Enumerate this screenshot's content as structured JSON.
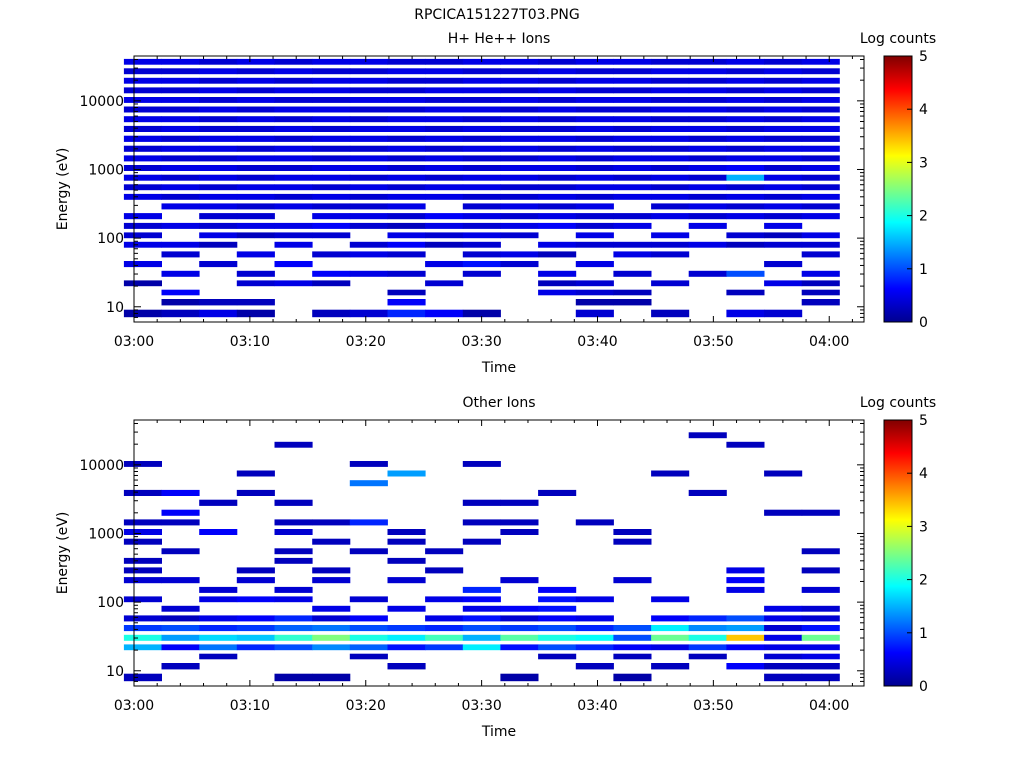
{
  "figure_title": "RPCICA151227T03.PNG",
  "chart_data": [
    {
      "type": "heatmap",
      "title": "H+ He++ Ions",
      "xlabel": "Time",
      "ylabel": "Energy (eV)",
      "y_scale": "log",
      "ylim": [
        6,
        45000
      ],
      "x_range": [
        "03:00",
        "04:03"
      ],
      "x_ticks": [
        "03:00",
        "03:10",
        "03:20",
        "03:30",
        "03:40",
        "03:50",
        "04:00"
      ],
      "y_ticks": [
        "10",
        "100",
        "1000",
        "10000"
      ],
      "colorbar": {
        "label": "Log counts",
        "range": [
          0,
          5
        ],
        "ticks": [
          "0",
          "1",
          "2",
          "3",
          "4",
          "5"
        ]
      },
      "time_bins": [
        "03:00:45",
        "03:04:00",
        "03:07:15",
        "03:10:30",
        "03:13:45",
        "03:17:00",
        "03:20:15",
        "03:23:30",
        "03:26:45",
        "03:30:00",
        "03:33:15",
        "03:36:30",
        "03:39:45",
        "03:43:00",
        "03:46:15",
        "03:49:30",
        "03:52:45",
        "03:56:00",
        "03:59:15"
      ],
      "energy_bins": [
        8,
        12,
        16,
        22,
        30,
        42,
        58,
        80,
        110,
        150,
        210,
        290,
        400,
        550,
        760,
        1050,
        1450,
        2000,
        2800,
        3900,
        5400,
        7500,
        10300,
        14200,
        19600,
        27000,
        37000
      ],
      "values": [
        [
          0.2,
          0.3,
          0.5,
          0.2,
          0.0,
          0.3,
          0.4,
          0.8,
          0.6,
          0.2,
          0.0,
          0.0,
          0.4,
          0.0,
          0.3,
          0.0,
          0.5,
          0.4,
          0.0
        ],
        [
          0.0,
          0.2,
          0.3,
          0.3,
          0.0,
          0.0,
          0.0,
          0.6,
          0.0,
          0.0,
          0.0,
          0.0,
          0.2,
          0.2,
          0.0,
          0.0,
          0.0,
          0.0,
          0.3
        ],
        [
          0.0,
          0.6,
          0.0,
          0.0,
          0.0,
          0.0,
          0.0,
          0.3,
          0.0,
          0.0,
          0.0,
          0.5,
          0.4,
          0.3,
          0.0,
          0.0,
          0.3,
          0.0,
          0.3
        ],
        [
          0.2,
          0.0,
          0.0,
          0.4,
          0.5,
          0.3,
          0.0,
          0.0,
          0.4,
          0.0,
          0.0,
          0.3,
          0.4,
          0.0,
          0.4,
          0.0,
          0.0,
          0.5,
          0.3
        ],
        [
          0.0,
          0.5,
          0.0,
          0.4,
          0.0,
          0.6,
          0.5,
          0.4,
          0.0,
          0.4,
          0.0,
          0.5,
          0.0,
          0.4,
          0.0,
          0.4,
          1.0,
          0.0,
          0.5
        ],
        [
          0.5,
          0.0,
          0.4,
          0.0,
          0.6,
          0.0,
          0.0,
          0.0,
          0.5,
          0.7,
          0.4,
          0.0,
          0.5,
          0.0,
          0.0,
          0.0,
          0.0,
          0.4,
          0.0
        ],
        [
          0.0,
          0.4,
          0.0,
          0.5,
          0.0,
          0.4,
          0.5,
          0.4,
          0.0,
          0.4,
          0.5,
          0.3,
          0.0,
          0.5,
          0.4,
          0.0,
          0.0,
          0.0,
          0.4
        ],
        [
          0.5,
          0.5,
          0.3,
          0.0,
          0.5,
          0.0,
          0.4,
          0.6,
          0.3,
          0.4,
          0.0,
          0.5,
          0.4,
          0.4,
          0.4,
          0.5,
          0.3,
          0.4,
          0.4
        ],
        [
          0.4,
          0.0,
          0.5,
          0.3,
          0.4,
          0.4,
          0.0,
          0.5,
          0.4,
          0.5,
          0.4,
          0.0,
          0.5,
          0.0,
          0.5,
          0.0,
          0.4,
          0.3,
          0.5
        ],
        [
          0.4,
          0.5,
          0.4,
          0.5,
          0.5,
          0.6,
          0.4,
          0.3,
          0.5,
          0.4,
          0.5,
          0.6,
          0.4,
          0.5,
          0.0,
          0.5,
          0.0,
          0.5,
          0.0
        ],
        [
          0.5,
          0.0,
          0.4,
          0.4,
          0.0,
          0.5,
          0.5,
          0.4,
          0.6,
          0.5,
          0.4,
          0.5,
          0.4,
          0.4,
          0.5,
          0.4,
          0.5,
          0.4,
          0.5
        ],
        [
          0.0,
          0.5,
          0.5,
          0.4,
          0.5,
          0.4,
          0.4,
          0.5,
          0.0,
          0.4,
          0.5,
          0.4,
          0.5,
          0.0,
          0.4,
          0.5,
          0.4,
          0.5,
          0.4
        ],
        [
          0.5,
          0.4,
          0.5,
          0.5,
          0.4,
          0.5,
          0.4,
          0.5,
          0.5,
          0.4,
          0.4,
          0.5,
          0.4,
          0.5,
          0.5,
          0.4,
          0.5,
          0.4,
          0.5
        ],
        [
          0.4,
          0.5,
          0.4,
          0.5,
          0.5,
          0.4,
          0.5,
          0.4,
          0.5,
          0.5,
          0.4,
          0.4,
          0.5,
          0.5,
          0.4,
          0.5,
          0.4,
          0.5,
          0.4
        ],
        [
          0.5,
          0.4,
          0.5,
          0.4,
          0.5,
          0.5,
          0.4,
          0.5,
          0.4,
          0.5,
          0.5,
          0.4,
          0.5,
          0.4,
          0.5,
          0.4,
          1.5,
          0.5,
          0.4
        ],
        [
          0.4,
          0.5,
          0.5,
          0.4,
          0.4,
          0.5,
          0.5,
          0.4,
          0.5,
          0.4,
          0.5,
          0.5,
          0.4,
          0.5,
          0.4,
          0.5,
          0.6,
          0.4,
          0.5
        ],
        [
          0.5,
          0.4,
          0.4,
          0.5,
          0.5,
          0.4,
          0.5,
          0.4,
          0.5,
          0.4,
          0.4,
          0.5,
          0.4,
          0.5,
          0.5,
          0.4,
          0.5,
          0.5,
          0.4
        ],
        [
          0.4,
          0.5,
          0.5,
          0.4,
          0.5,
          0.4,
          0.4,
          0.5,
          0.4,
          0.5,
          0.5,
          0.4,
          0.5,
          0.4,
          0.4,
          0.5,
          0.4,
          0.5,
          0.5
        ],
        [
          0.5,
          0.4,
          0.5,
          0.5,
          0.4,
          0.5,
          0.5,
          0.4,
          0.5,
          0.4,
          0.5,
          0.5,
          0.4,
          0.5,
          0.5,
          0.4,
          0.5,
          0.4,
          0.4
        ],
        [
          0.4,
          0.5,
          0.4,
          0.4,
          0.5,
          0.4,
          0.5,
          0.5,
          0.4,
          0.5,
          0.4,
          0.4,
          0.5,
          0.4,
          0.5,
          0.5,
          0.4,
          0.5,
          0.5
        ],
        [
          0.5,
          0.5,
          0.4,
          0.5,
          0.4,
          0.5,
          0.4,
          0.5,
          0.5,
          0.4,
          0.5,
          0.4,
          0.5,
          0.5,
          0.4,
          0.4,
          0.5,
          0.4,
          0.5
        ],
        [
          0.4,
          0.4,
          0.5,
          0.4,
          0.5,
          0.5,
          0.4,
          0.4,
          0.5,
          0.5,
          0.4,
          0.5,
          0.4,
          0.4,
          0.5,
          0.5,
          0.4,
          0.5,
          0.4
        ],
        [
          0.5,
          0.5,
          0.4,
          0.5,
          0.4,
          0.4,
          0.5,
          0.5,
          0.4,
          0.4,
          0.5,
          0.4,
          0.5,
          0.5,
          0.4,
          0.4,
          0.5,
          0.4,
          0.5
        ],
        [
          0.4,
          0.4,
          0.5,
          0.4,
          0.5,
          0.5,
          0.4,
          0.4,
          0.5,
          0.5,
          0.4,
          0.5,
          0.4,
          0.4,
          0.5,
          0.5,
          0.4,
          0.5,
          0.4
        ],
        [
          0.5,
          0.5,
          0.4,
          0.5,
          0.4,
          0.5,
          0.5,
          0.4,
          0.4,
          0.5,
          0.5,
          0.4,
          0.5,
          0.5,
          0.4,
          0.4,
          0.5,
          0.4,
          0.5
        ],
        [
          0.4,
          0.4,
          0.5,
          0.4,
          0.5,
          0.4,
          0.4,
          0.5,
          0.5,
          0.4,
          0.4,
          0.5,
          0.4,
          0.4,
          0.5,
          0.5,
          0.4,
          0.5,
          0.4
        ],
        [
          0.5,
          0.5,
          0.4,
          0.5,
          0.4,
          0.5,
          0.5,
          0.4,
          0.4,
          0.5,
          0.5,
          0.4,
          0.5,
          0.5,
          0.4,
          0.4,
          0.5,
          0.4,
          0.5
        ]
      ]
    },
    {
      "type": "heatmap",
      "title": "Other Ions",
      "xlabel": "Time",
      "ylabel": "Energy (eV)",
      "y_scale": "log",
      "ylim": [
        6,
        45000
      ],
      "x_range": [
        "03:00",
        "04:03"
      ],
      "x_ticks": [
        "03:00",
        "03:10",
        "03:20",
        "03:30",
        "03:40",
        "03:50",
        "04:00"
      ],
      "y_ticks": [
        "10",
        "100",
        "1000",
        "10000"
      ],
      "colorbar": {
        "label": "Log counts",
        "range": [
          0,
          5
        ],
        "ticks": [
          "0",
          "1",
          "2",
          "3",
          "4",
          "5"
        ]
      },
      "time_bins": [
        "03:00:45",
        "03:04:00",
        "03:07:15",
        "03:10:30",
        "03:13:45",
        "03:17:00",
        "03:20:15",
        "03:23:30",
        "03:26:45",
        "03:30:00",
        "03:33:15",
        "03:36:30",
        "03:39:45",
        "03:43:00",
        "03:46:15",
        "03:49:30",
        "03:52:45",
        "03:56:00",
        "03:59:15"
      ],
      "energy_bins": [
        8,
        12,
        16,
        22,
        30,
        42,
        58,
        80,
        110,
        150,
        210,
        290,
        400,
        550,
        760,
        1050,
        1450,
        2000,
        2800,
        3900,
        5400,
        7500,
        10300,
        14200,
        19600,
        27000,
        37000
      ],
      "values": [
        [
          0.3,
          0.0,
          0.0,
          0.0,
          0.2,
          0.2,
          0.0,
          0.0,
          0.0,
          0.0,
          0.2,
          0.0,
          0.0,
          0.2,
          0.0,
          0.0,
          0.0,
          0.3,
          0.3
        ],
        [
          0.0,
          0.3,
          0.0,
          0.0,
          0.0,
          0.0,
          0.0,
          0.3,
          0.0,
          0.0,
          0.0,
          0.0,
          0.3,
          0.0,
          0.3,
          0.0,
          0.6,
          0.3,
          0.3
        ],
        [
          0.0,
          0.0,
          0.3,
          0.0,
          0.0,
          0.0,
          0.3,
          0.0,
          0.0,
          0.0,
          0.0,
          0.3,
          0.0,
          0.3,
          0.0,
          0.3,
          0.0,
          0.4,
          0.5
        ],
        [
          1.5,
          0.6,
          1.2,
          0.8,
          1.0,
          1.3,
          1.1,
          0.7,
          0.9,
          1.8,
          0.7,
          1.0,
          0.8,
          0.6,
          0.5,
          0.9,
          0.6,
          0.5,
          0.5
        ],
        [
          2.0,
          1.4,
          1.7,
          1.6,
          2.1,
          2.5,
          2.0,
          1.8,
          2.2,
          1.5,
          2.3,
          2.0,
          1.9,
          1.0,
          2.4,
          2.0,
          3.4,
          0.5,
          2.4
        ],
        [
          0.9,
          1.0,
          0.8,
          0.9,
          1.1,
          1.2,
          1.0,
          0.9,
          0.8,
          1.0,
          0.9,
          1.0,
          0.8,
          1.0,
          1.8,
          1.3,
          1.4,
          0.4,
          0.7
        ],
        [
          0.4,
          0.3,
          0.5,
          0.6,
          0.8,
          0.4,
          0.6,
          0.0,
          0.5,
          0.7,
          0.4,
          0.6,
          0.5,
          0.0,
          0.6,
          0.8,
          1.0,
          0.5,
          0.4
        ],
        [
          0.0,
          0.4,
          0.0,
          0.0,
          0.0,
          0.5,
          0.0,
          0.5,
          0.0,
          0.5,
          0.6,
          0.7,
          0.0,
          0.0,
          0.0,
          0.0,
          0.0,
          0.5,
          0.4
        ],
        [
          0.4,
          0.0,
          0.5,
          0.6,
          0.5,
          0.0,
          0.4,
          0.0,
          0.5,
          0.6,
          0.0,
          0.7,
          0.5,
          0.0,
          0.5,
          0.0,
          0.0,
          0.0,
          0.0
        ],
        [
          0.0,
          0.0,
          0.4,
          0.0,
          0.4,
          0.0,
          0.0,
          0.0,
          0.0,
          0.8,
          0.0,
          0.6,
          0.0,
          0.0,
          0.0,
          0.0,
          0.5,
          0.0,
          0.4
        ],
        [
          0.4,
          0.4,
          0.0,
          0.4,
          0.0,
          0.4,
          0.0,
          0.4,
          0.0,
          0.0,
          0.4,
          0.0,
          0.0,
          0.4,
          0.0,
          0.0,
          0.6,
          0.0,
          0.0
        ],
        [
          0.3,
          0.0,
          0.0,
          0.3,
          0.0,
          0.3,
          0.0,
          0.0,
          0.3,
          0.0,
          0.0,
          0.0,
          0.0,
          0.0,
          0.0,
          0.0,
          0.5,
          0.0,
          0.3
        ],
        [
          0.3,
          0.0,
          0.0,
          0.0,
          0.3,
          0.0,
          0.0,
          0.3,
          0.0,
          0.0,
          0.0,
          0.0,
          0.0,
          0.0,
          0.0,
          0.0,
          0.0,
          0.0,
          0.0
        ],
        [
          0.0,
          0.3,
          0.0,
          0.0,
          0.3,
          0.0,
          0.3,
          0.0,
          0.3,
          0.0,
          0.0,
          0.0,
          0.0,
          0.0,
          0.0,
          0.0,
          0.0,
          0.0,
          0.3
        ],
        [
          0.3,
          0.0,
          0.0,
          0.0,
          0.0,
          0.3,
          0.0,
          0.3,
          0.0,
          0.3,
          0.0,
          0.0,
          0.0,
          0.3,
          0.0,
          0.0,
          0.0,
          0.0,
          0.0
        ],
        [
          0.5,
          0.0,
          0.6,
          0.0,
          0.4,
          0.0,
          0.0,
          0.3,
          0.0,
          0.0,
          0.3,
          0.0,
          0.0,
          0.3,
          0.0,
          0.0,
          0.0,
          0.0,
          0.0
        ],
        [
          0.3,
          0.3,
          0.0,
          0.0,
          0.3,
          0.3,
          0.8,
          0.0,
          0.0,
          0.3,
          0.3,
          0.0,
          0.3,
          0.0,
          0.0,
          0.0,
          0.0,
          0.0,
          0.0
        ],
        [
          0.0,
          0.6,
          0.0,
          0.0,
          0.0,
          0.0,
          0.0,
          0.0,
          0.0,
          0.0,
          0.0,
          0.0,
          0.0,
          0.0,
          0.0,
          0.0,
          0.0,
          0.3,
          0.3
        ],
        [
          0.0,
          0.0,
          0.3,
          0.0,
          0.3,
          0.0,
          0.0,
          0.0,
          0.0,
          0.3,
          0.3,
          0.0,
          0.0,
          0.0,
          0.0,
          0.0,
          0.0,
          0.0,
          0.0
        ],
        [
          0.3,
          0.6,
          0.0,
          0.3,
          0.0,
          0.0,
          0.0,
          0.0,
          0.0,
          0.0,
          0.0,
          0.3,
          0.0,
          0.0,
          0.0,
          0.3,
          0.0,
          0.0,
          0.0
        ],
        [
          0.0,
          0.0,
          0.0,
          0.0,
          0.0,
          0.0,
          1.2,
          0.0,
          0.0,
          0.0,
          0.0,
          0.0,
          0.0,
          0.0,
          0.0,
          0.0,
          0.0,
          0.0,
          0.0
        ],
        [
          0.0,
          0.0,
          0.0,
          0.3,
          0.0,
          0.0,
          0.0,
          1.4,
          0.0,
          0.0,
          0.0,
          0.0,
          0.0,
          0.0,
          0.3,
          0.0,
          0.0,
          0.3,
          0.0
        ],
        [
          0.3,
          0.0,
          0.0,
          0.0,
          0.0,
          0.0,
          0.3,
          0.0,
          0.0,
          0.3,
          0.0,
          0.0,
          0.0,
          0.0,
          0.0,
          0.0,
          0.0,
          0.0,
          0.0
        ],
        [
          0.0,
          0.0,
          0.0,
          0.0,
          0.0,
          0.0,
          0.0,
          0.0,
          0.0,
          0.0,
          0.0,
          0.0,
          0.0,
          0.0,
          0.0,
          0.0,
          0.0,
          0.0,
          0.0
        ],
        [
          0.0,
          0.0,
          0.0,
          0.0,
          0.3,
          0.0,
          0.0,
          0.0,
          0.0,
          0.0,
          0.0,
          0.0,
          0.0,
          0.0,
          0.0,
          0.0,
          0.3,
          0.0,
          0.0
        ],
        [
          0.0,
          0.0,
          0.0,
          0.0,
          0.0,
          0.0,
          0.0,
          0.0,
          0.0,
          0.0,
          0.0,
          0.0,
          0.0,
          0.0,
          0.0,
          0.3,
          0.0,
          0.0,
          0.0
        ],
        [
          0.0,
          0.0,
          0.0,
          0.0,
          0.0,
          0.0,
          0.0,
          0.0,
          0.0,
          0.0,
          0.0,
          0.0,
          0.0,
          0.0,
          0.0,
          0.0,
          0.0,
          0.0,
          0.0
        ]
      ]
    }
  ]
}
